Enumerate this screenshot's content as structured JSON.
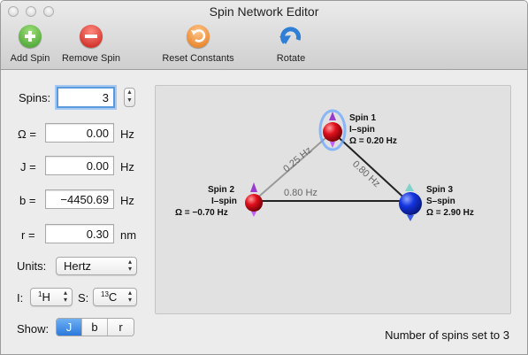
{
  "window": {
    "title": "Spin Network Editor"
  },
  "toolbar": {
    "add_spin": "Add Spin",
    "remove_spin": "Remove Spin",
    "reset_constants": "Reset Constants",
    "rotate": "Rotate"
  },
  "form": {
    "spins_label": "Spins:",
    "spins_value": "3",
    "omega_label": "Ω =",
    "omega_value": "0.00",
    "omega_unit": "Hz",
    "j_label": "J =",
    "j_value": "0.00",
    "j_unit": "Hz",
    "b_label": "b =",
    "b_value": "−4450.69",
    "b_unit": "Hz",
    "r_label": "r =",
    "r_value": "0.30",
    "r_unit": "nm",
    "units_label": "Units:",
    "units_value": "Hertz",
    "i_label": "I:",
    "i_mass": "1",
    "i_element": "H",
    "s_label": "S:",
    "s_mass": "13",
    "s_element": "C",
    "show_label": "Show:",
    "show_options": [
      "J",
      "b",
      "r"
    ],
    "show_selected": "J"
  },
  "network": {
    "spins": [
      {
        "name": "Spin 1",
        "type": "I–spin",
        "omega": "Ω = 0.20 Hz",
        "color": "#d8101c"
      },
      {
        "name": "Spin 2",
        "type": "I–spin",
        "omega": "Ω = −0.70 Hz",
        "color": "#d8101c"
      },
      {
        "name": "Spin 3",
        "type": "S–spin",
        "omega": "Ω = 2.90 Hz",
        "color": "#1030d8"
      }
    ],
    "couplings": [
      {
        "between": "Spin 1–Spin 2",
        "label": "0.25 Hz"
      },
      {
        "between": "Spin 1–Spin 3",
        "label": "0.80 Hz"
      },
      {
        "between": "Spin 2–Spin 3",
        "label": "0.80 Hz"
      }
    ]
  },
  "status": "Number of spins set to 3",
  "colors": {
    "selection": "#5b9bdc",
    "i_spin": "#d8101c",
    "s_spin": "#1030d8"
  }
}
